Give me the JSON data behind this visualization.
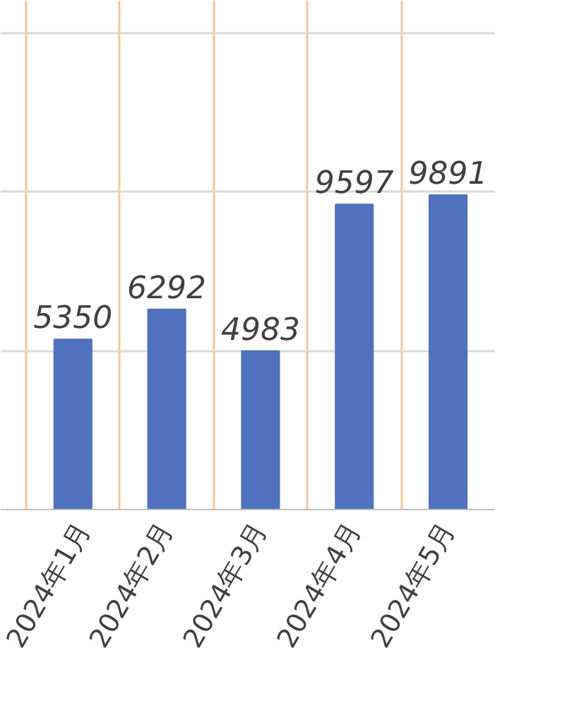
{
  "chart_data": {
    "type": "bar",
    "categories": [
      "2024年1月",
      "2024年2月",
      "2024年3月",
      "2024年4月",
      "2024年5月"
    ],
    "values": [
      5350,
      6292,
      4983,
      9597,
      9891
    ],
    "color": "#4f71be",
    "data_labels": true,
    "ylim": [
      0,
      16000
    ],
    "yticks": [
      {
        "value": 0,
        "label": null
      },
      {
        "value": 5000,
        "label": null
      },
      {
        "value": 10000,
        "label": null
      },
      {
        "value": 15000,
        "label": null
      }
    ],
    "tick_labels": "x",
    "grid": true
  }
}
